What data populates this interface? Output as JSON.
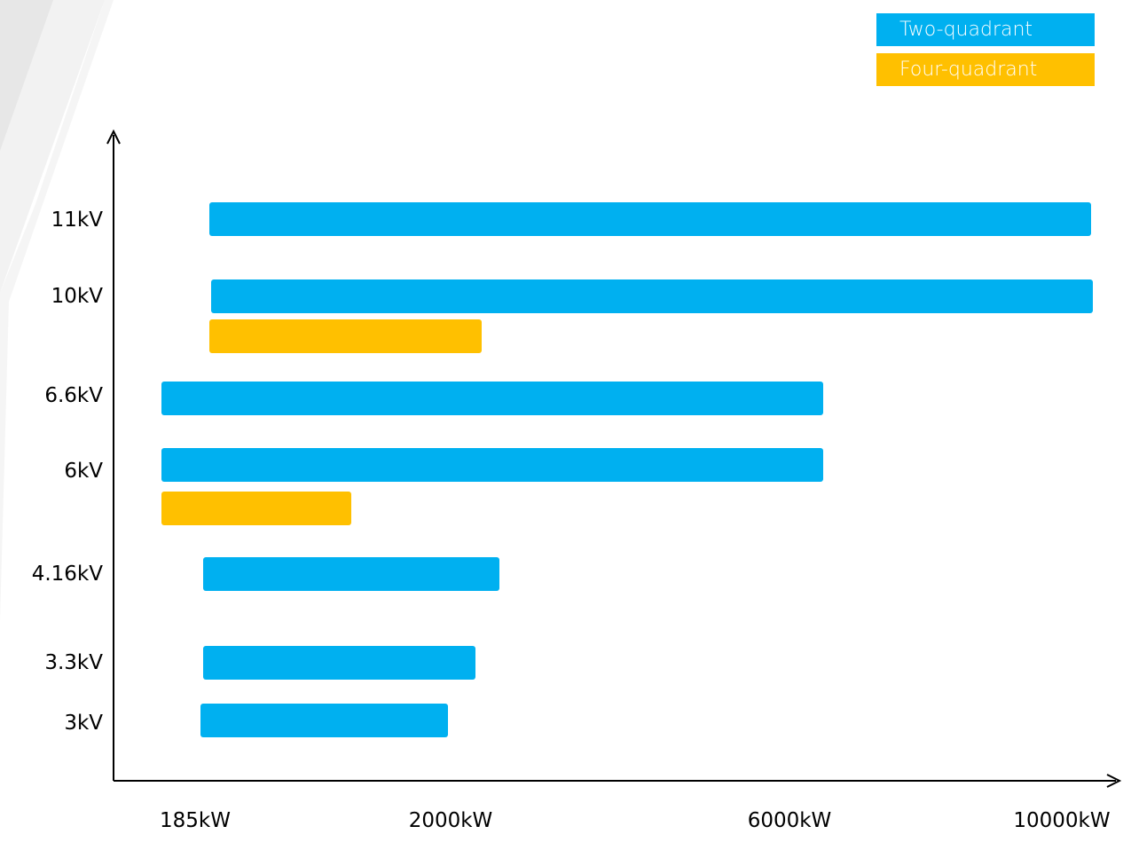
{
  "colors": {
    "two_quadrant": "#00B0F0",
    "four_quadrant": "#FFC000",
    "axis": "#000000"
  },
  "legend": {
    "two_quadrant_label": "Two-quadrant",
    "four_quadrant_label": "Four-quadrant"
  },
  "chart_data": {
    "type": "bar",
    "orientation": "horizontal-range",
    "title": "",
    "xlabel": "",
    "ylabel": "",
    "legend_position": "top-right",
    "grid": false,
    "x_ticks": [
      "185kW",
      "2000kW",
      "6000kW",
      "10000kW"
    ],
    "x_tick_values": [
      185,
      2000,
      6000,
      10000
    ],
    "categories": [
      "11kV",
      "10kV",
      "6.6kV",
      "6kV",
      "4.16kV",
      "3.3kV",
      "3kV"
    ],
    "series": [
      {
        "name": "Two-quadrant",
        "ranges": [
          {
            "category": "11kV",
            "from": 490,
            "to": 10000
          },
          {
            "category": "10kV",
            "from": 500,
            "to": 10000
          },
          {
            "category": "6.6kV",
            "from": 185,
            "to": 6000
          },
          {
            "category": "6kV",
            "from": 185,
            "to": 6000
          },
          {
            "category": "4.16kV",
            "from": 410,
            "to": 2200
          },
          {
            "category": "3.3kV",
            "from": 410,
            "to": 1950
          },
          {
            "category": "3kV",
            "from": 400,
            "to": 1700
          }
        ]
      },
      {
        "name": "Four-quadrant",
        "ranges": [
          {
            "category": "10kV",
            "from": 490,
            "to": 2000
          },
          {
            "category": "6kV",
            "from": 185,
            "to": 1300
          }
        ]
      }
    ]
  }
}
